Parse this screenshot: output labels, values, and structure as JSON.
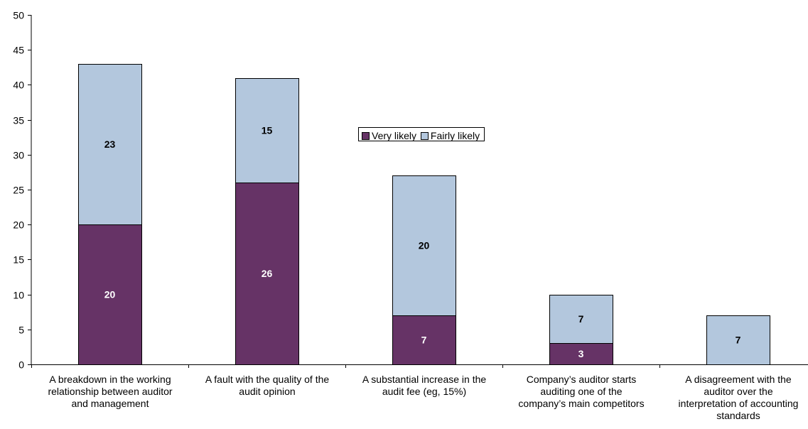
{
  "chart_data": {
    "type": "bar",
    "stacked": true,
    "categories": [
      "A breakdown in the working relationship between auditor and management",
      "A fault with the quality of the audit opinion",
      "A substantial increase in the audit fee (eg, 15%)",
      "Company’s auditor starts auditing one of the company’s main competitors",
      "A disagreement with the auditor over the interpretation of accounting standards"
    ],
    "category_lines": [
      [
        "A breakdown in the working",
        "relationship between auditor",
        "and management"
      ],
      [
        "A fault with the quality of the",
        "audit opinion"
      ],
      [
        "A substantial increase in the",
        "audit fee (eg, 15%)"
      ],
      [
        "Company’s auditor starts",
        "auditing one of the",
        "company’s main competitors"
      ],
      [
        "A disagreement with the",
        "auditor over the",
        "interpretation of accounting",
        "standards"
      ]
    ],
    "series": [
      {
        "name": "Very likely",
        "values": [
          20,
          26,
          7,
          3,
          0
        ],
        "color": "#663366",
        "label_color": "#ffffff"
      },
      {
        "name": "Fairly likely",
        "values": [
          23,
          15,
          20,
          7,
          7
        ],
        "color": "#b3c7dd",
        "label_color": "#000000"
      }
    ],
    "ylim": [
      0,
      50
    ],
    "yticks": [
      0,
      5,
      10,
      15,
      20,
      25,
      30,
      35,
      40,
      45,
      50
    ],
    "grid": false,
    "legend_position": "center"
  }
}
